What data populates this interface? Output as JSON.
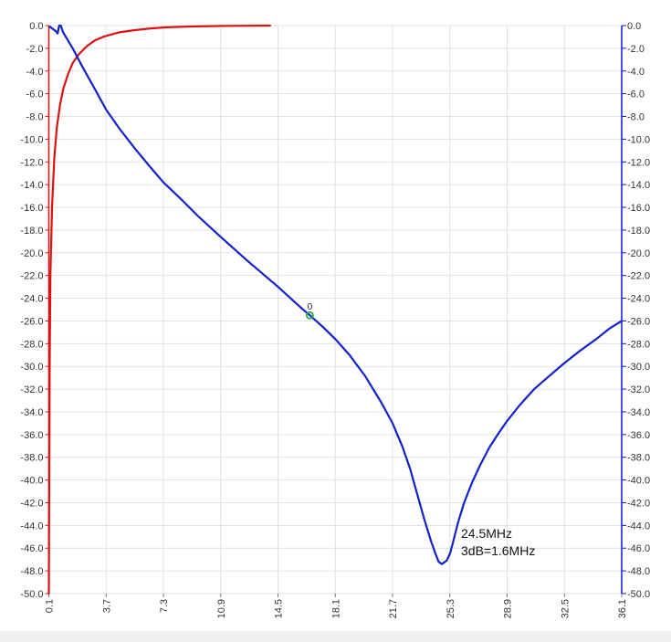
{
  "chart_data": {
    "type": "line",
    "xlim": [
      0.1,
      36.1
    ],
    "ylim": [
      -50,
      0
    ],
    "x_ticks": [
      "0.1",
      "3.7",
      "7.3",
      "10.9",
      "14.5",
      "18.1",
      "21.7",
      "25.3",
      "28.9",
      "32.5",
      "36.1"
    ],
    "y_ticks": [
      "0.0",
      "-2.0",
      "-4.0",
      "-6.0",
      "-8.0",
      "-10.0",
      "-12.0",
      "-14.0",
      "-16.0",
      "-18.0",
      "-20.0",
      "-22.0",
      "-24.0",
      "-26.0",
      "-28.0",
      "-30.0",
      "-32.0",
      "-34.0",
      "-36.0",
      "-38.0",
      "-40.0",
      "-42.0",
      "-44.0",
      "-46.0",
      "-48.0",
      "-50.0"
    ],
    "y_ticks_right": [
      "0.0",
      "-2.0",
      "-4.0",
      "-6.0",
      "-8.0",
      "-10.0",
      "-12.0",
      "-14.0",
      "-16.0",
      "-18.0",
      "-20.0",
      "-22.0",
      "-24.0",
      "-26.0",
      "-28.0",
      "-30.0",
      "-32.0",
      "-34.0",
      "-36.0",
      "-38.0",
      "-40.0",
      "-42.0",
      "-44.0",
      "-46.0",
      "-48.0",
      "-50.0"
    ],
    "grid": true,
    "series": [
      {
        "color": "#dd1111",
        "axis": "left",
        "points": [
          [
            0.1,
            -50
          ],
          [
            0.15,
            -30
          ],
          [
            0.2,
            -22
          ],
          [
            0.3,
            -16
          ],
          [
            0.45,
            -11.5
          ],
          [
            0.6,
            -9
          ],
          [
            0.8,
            -7
          ],
          [
            1.0,
            -5.6
          ],
          [
            1.3,
            -4.3
          ],
          [
            1.6,
            -3.3
          ],
          [
            2.0,
            -2.5
          ],
          [
            2.5,
            -1.8
          ],
          [
            3.0,
            -1.3
          ],
          [
            3.6,
            -0.95
          ],
          [
            4.5,
            -0.6
          ],
          [
            5.5,
            -0.4
          ],
          [
            6.5,
            -0.25
          ],
          [
            7.5,
            -0.15
          ],
          [
            9,
            -0.08
          ],
          [
            11,
            -0.03
          ],
          [
            14,
            0
          ]
        ]
      },
      {
        "color": "#1122cc",
        "axis": "right",
        "points": [
          [
            0.15,
            -0.1
          ],
          [
            0.35,
            -0.3
          ],
          [
            0.55,
            -0.5
          ],
          [
            0.65,
            -0.7
          ],
          [
            0.75,
            0
          ],
          [
            0.85,
            0
          ],
          [
            1.0,
            -0.6
          ],
          [
            1.3,
            -1.3
          ],
          [
            1.6,
            -2.0
          ],
          [
            2.2,
            -3.6
          ],
          [
            3.0,
            -5.6
          ],
          [
            3.7,
            -7.4
          ],
          [
            4.5,
            -9.0
          ],
          [
            5.5,
            -10.8
          ],
          [
            6.5,
            -12.5
          ],
          [
            7.3,
            -13.8
          ],
          [
            8.5,
            -15.4
          ],
          [
            9.5,
            -16.8
          ],
          [
            10.9,
            -18.6
          ],
          [
            12.5,
            -20.6
          ],
          [
            14.5,
            -23.0
          ],
          [
            16.0,
            -24.9
          ],
          [
            16.5,
            -25.5
          ],
          [
            17.3,
            -26.5
          ],
          [
            18.1,
            -27.6
          ],
          [
            19.0,
            -29.0
          ],
          [
            20.0,
            -30.9
          ],
          [
            21.0,
            -33.2
          ],
          [
            21.7,
            -35.0
          ],
          [
            22.3,
            -37.0
          ],
          [
            22.8,
            -39.0
          ],
          [
            23.3,
            -41.5
          ],
          [
            23.7,
            -43.5
          ],
          [
            24.1,
            -45.3
          ],
          [
            24.4,
            -46.5
          ],
          [
            24.6,
            -47.2
          ],
          [
            24.8,
            -47.4
          ],
          [
            25.1,
            -47.1
          ],
          [
            25.3,
            -46.5
          ],
          [
            25.5,
            -45.5
          ],
          [
            25.8,
            -43.8
          ],
          [
            26.2,
            -42.0
          ],
          [
            26.7,
            -40.2
          ],
          [
            27.2,
            -38.7
          ],
          [
            27.8,
            -37.1
          ],
          [
            28.4,
            -35.8
          ],
          [
            28.9,
            -34.8
          ],
          [
            29.7,
            -33.4
          ],
          [
            30.6,
            -32.0
          ],
          [
            31.5,
            -30.9
          ],
          [
            32.5,
            -29.7
          ],
          [
            33.5,
            -28.6
          ],
          [
            34.5,
            -27.6
          ],
          [
            35.3,
            -26.7
          ],
          [
            36.1,
            -26.0
          ]
        ]
      }
    ],
    "marker": {
      "label": "0",
      "x": 16.5,
      "y": -25.5,
      "color": "#22aa44"
    },
    "annotations": [
      "24.5MHz",
      "3dB=1.6MHz"
    ]
  }
}
